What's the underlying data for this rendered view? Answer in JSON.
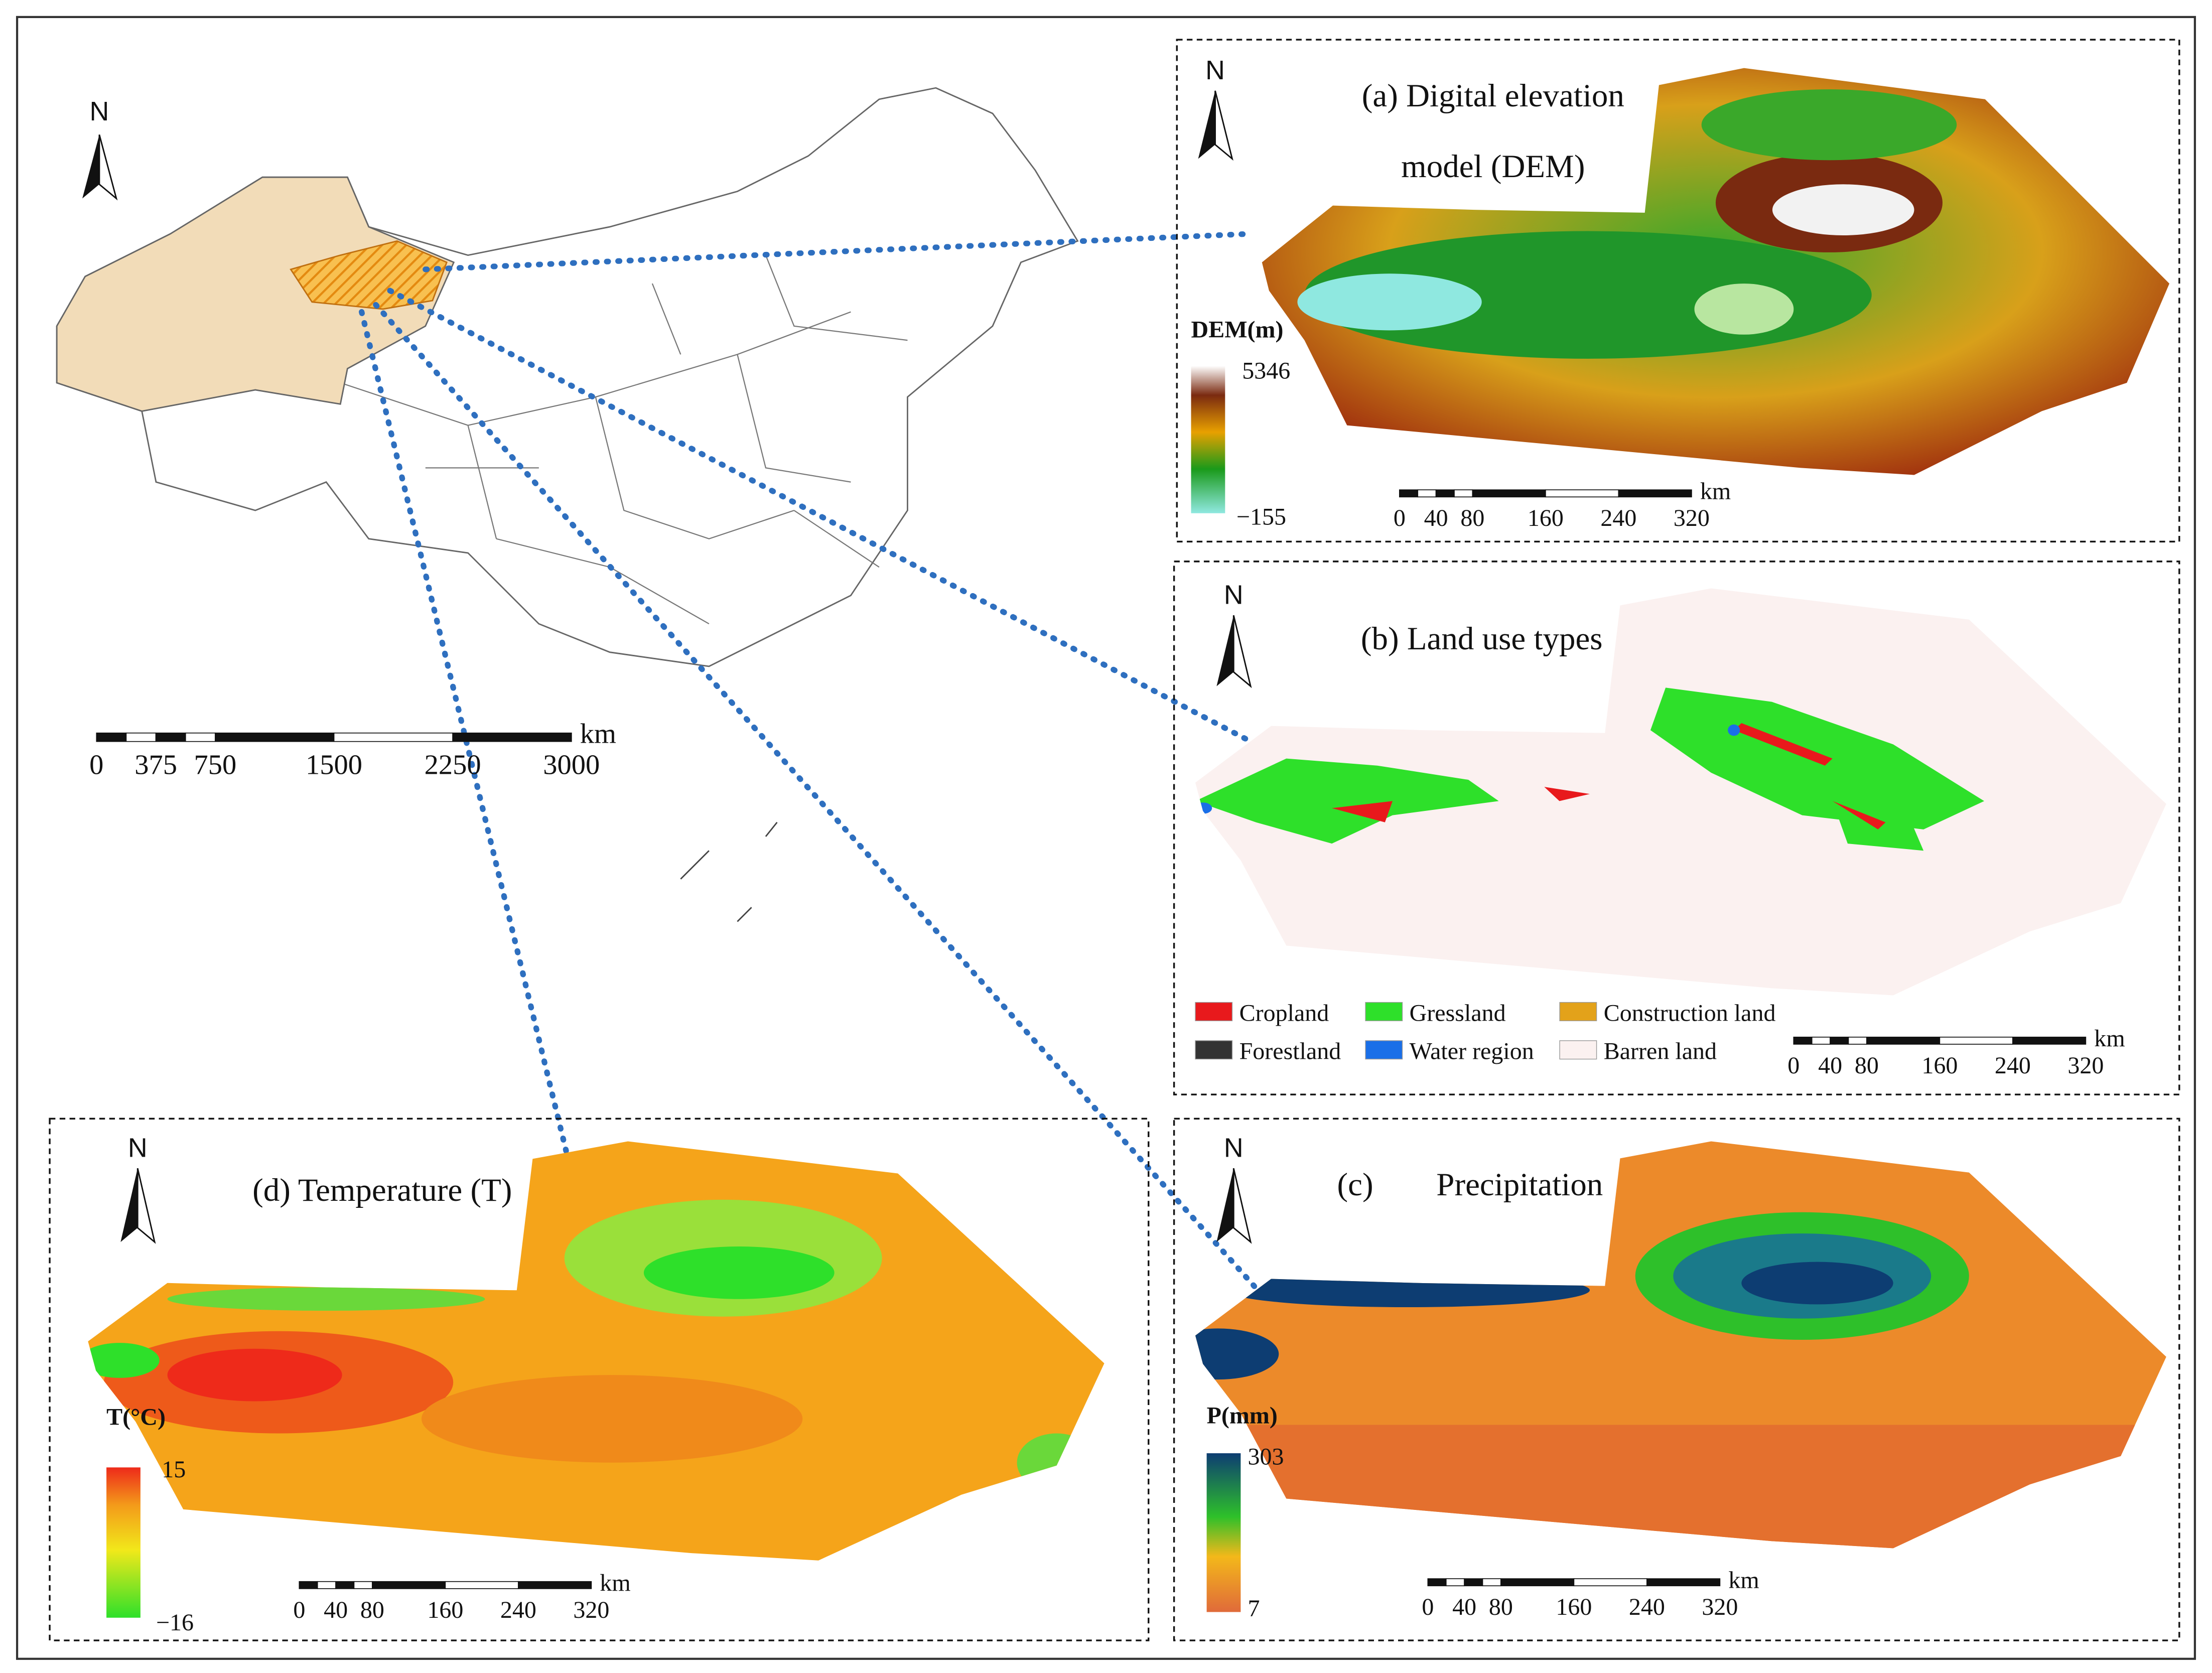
{
  "overview_map": {
    "north": "N",
    "scale_unit": "km",
    "scale_ticks": [
      "0",
      "375",
      "750",
      "1500",
      "2250",
      "3000"
    ]
  },
  "dem_panel": {
    "north": "N",
    "title_lines": [
      "(a) Digital elevation",
      "model (DEM)"
    ],
    "legend_title": "DEM(m)",
    "legend_max": "5346",
    "legend_min": "−155",
    "scale_unit": "km",
    "scale_ticks": [
      "0",
      "40",
      "80",
      "160",
      "240",
      "320"
    ]
  },
  "land_use_panel": {
    "north": "N",
    "title": "(b) Land use types",
    "legend": [
      {
        "label": "Cropland",
        "color": "#e8191c"
      },
      {
        "label": "Gressland",
        "color": "#2ee02a"
      },
      {
        "label": "Construction land",
        "color": "#e3a21a"
      },
      {
        "label": "Forestland",
        "color": "#333333"
      },
      {
        "label": "Water region",
        "color": "#1a6fe8"
      },
      {
        "label": "Barren land",
        "color": "#fbf1f0"
      }
    ],
    "scale_unit": "km",
    "scale_ticks": [
      "0",
      "40",
      "80",
      "160",
      "240",
      "320"
    ]
  },
  "precipitation_panel": {
    "north": "N",
    "title_label": "(c)",
    "title": "Precipitation",
    "legend_title": "P(mm)",
    "legend_max": "303",
    "legend_min": "7",
    "scale_unit": "km",
    "scale_ticks": [
      "0",
      "40",
      "80",
      "160",
      "240",
      "320"
    ]
  },
  "temperature_panel": {
    "north": "N",
    "title": "(d) Temperature (T)",
    "legend_title": "T(°C)",
    "legend_max": "15",
    "legend_min": "−16",
    "scale_unit": "km",
    "scale_ticks": [
      "0",
      "40",
      "80",
      "160",
      "240",
      "320"
    ]
  }
}
